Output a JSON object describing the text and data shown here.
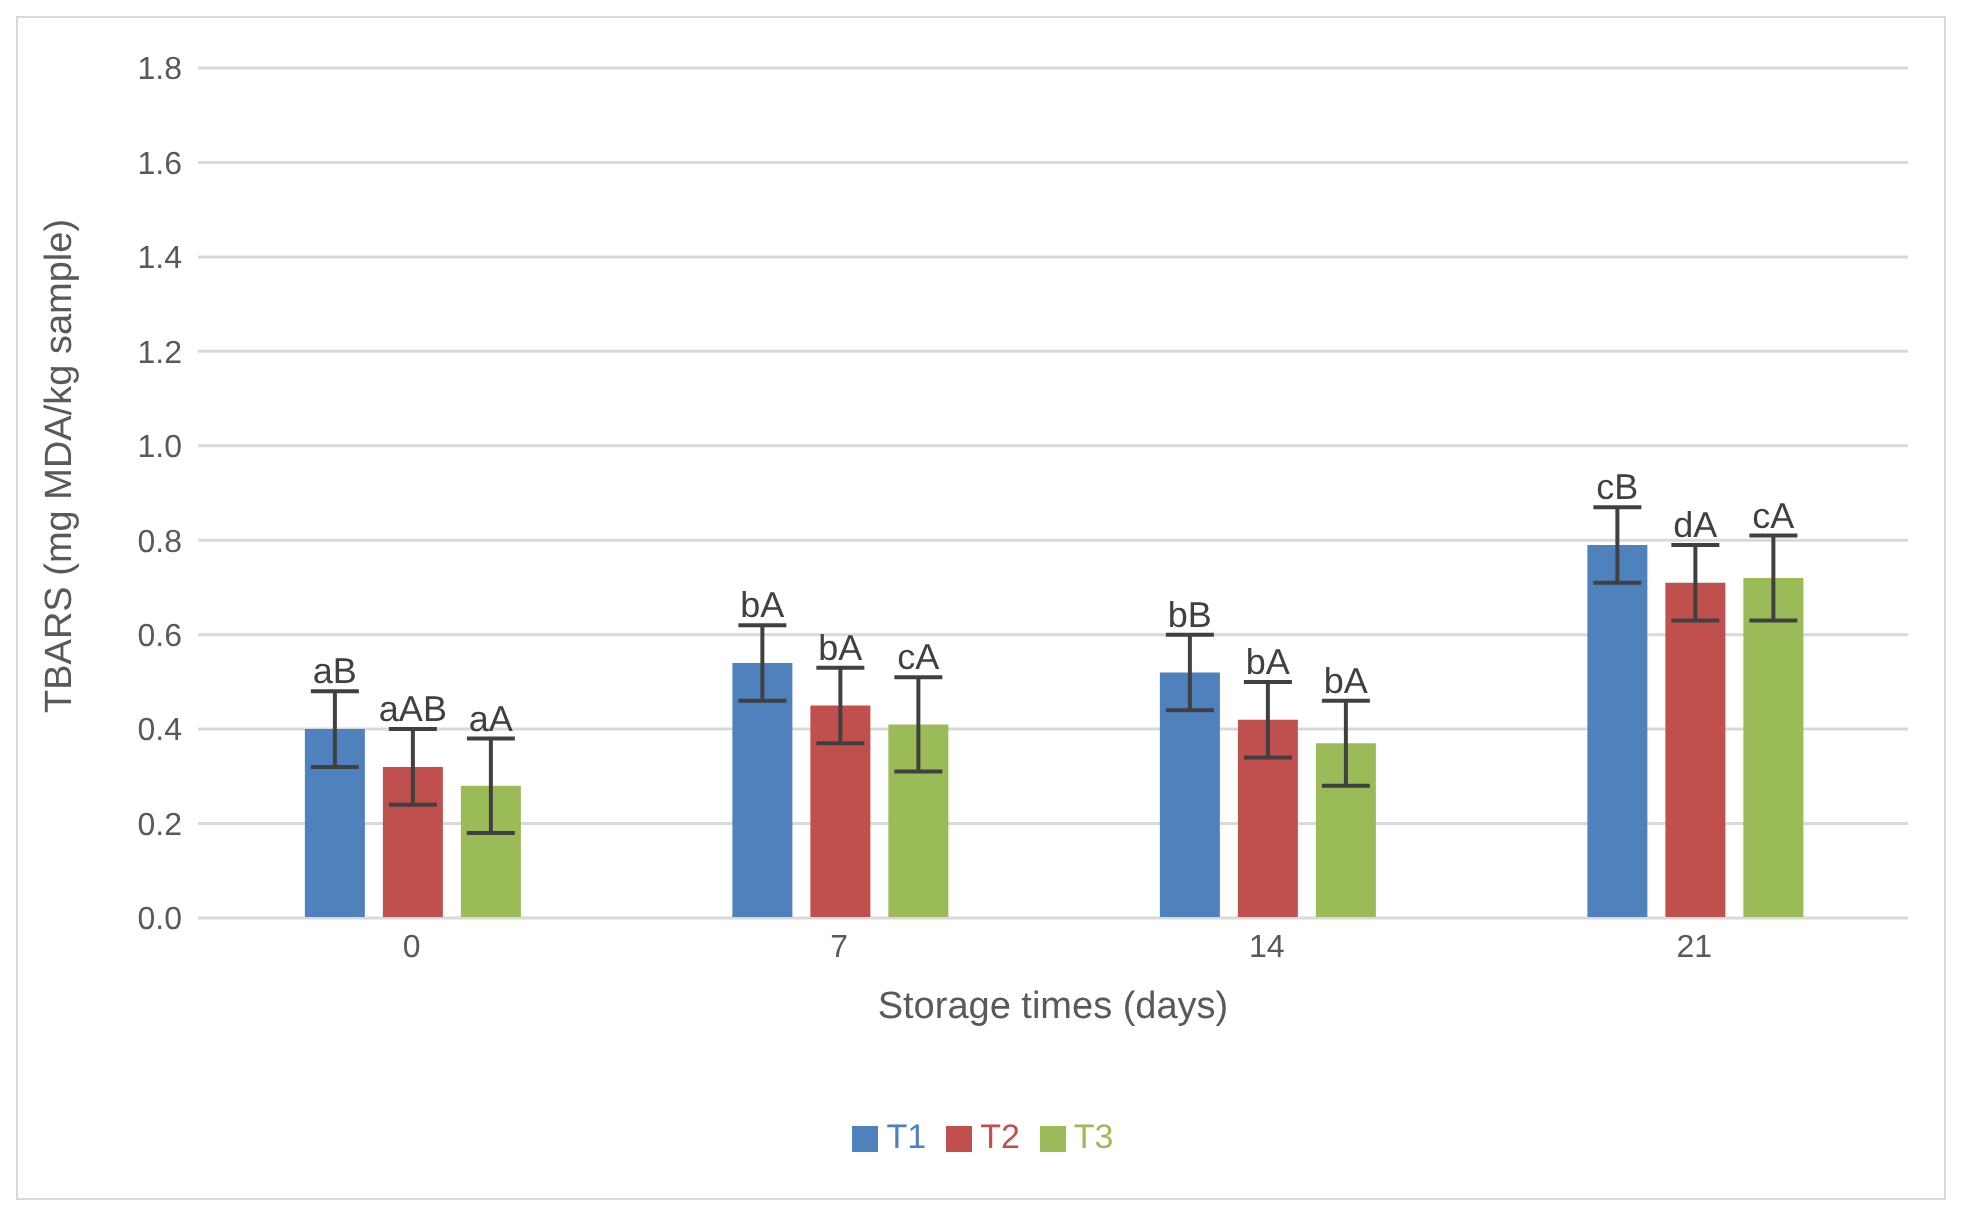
{
  "chart_data": {
    "type": "bar",
    "xlabel": "Storage times (days)",
    "ylabel": "TBARS (mg MDA/kg sample)",
    "categories": [
      "0",
      "7",
      "14",
      "21"
    ],
    "series": [
      {
        "name": "T1",
        "color": "#4f81bd",
        "values": [
          0.4,
          0.54,
          0.52,
          0.79
        ],
        "errors": [
          0.08,
          0.08,
          0.08,
          0.08
        ],
        "value_labels": [
          "aB",
          "bA",
          "bB",
          "cB"
        ]
      },
      {
        "name": "T2",
        "color": "#c0504d",
        "values": [
          0.32,
          0.45,
          0.42,
          0.71
        ],
        "errors": [
          0.08,
          0.08,
          0.08,
          0.08
        ],
        "value_labels": [
          "aAB",
          "bA",
          "bA",
          "dA"
        ]
      },
      {
        "name": "T3",
        "color": "#9bbb59",
        "values": [
          0.28,
          0.41,
          0.37,
          0.72
        ],
        "errors": [
          0.1,
          0.1,
          0.09,
          0.09
        ],
        "value_labels": [
          "aA",
          "cA",
          "bA",
          "cA"
        ]
      }
    ],
    "ylim": [
      0,
      1.8
    ],
    "yticks": [
      {
        "value": 0,
        "label": "0.0"
      },
      0.2,
      0.4,
      0.6,
      0.8,
      {
        "value": 1,
        "label": "1.0"
      },
      1.2,
      1.4,
      1.6,
      1.8
    ],
    "grid": "y",
    "legend": "bottom"
  }
}
